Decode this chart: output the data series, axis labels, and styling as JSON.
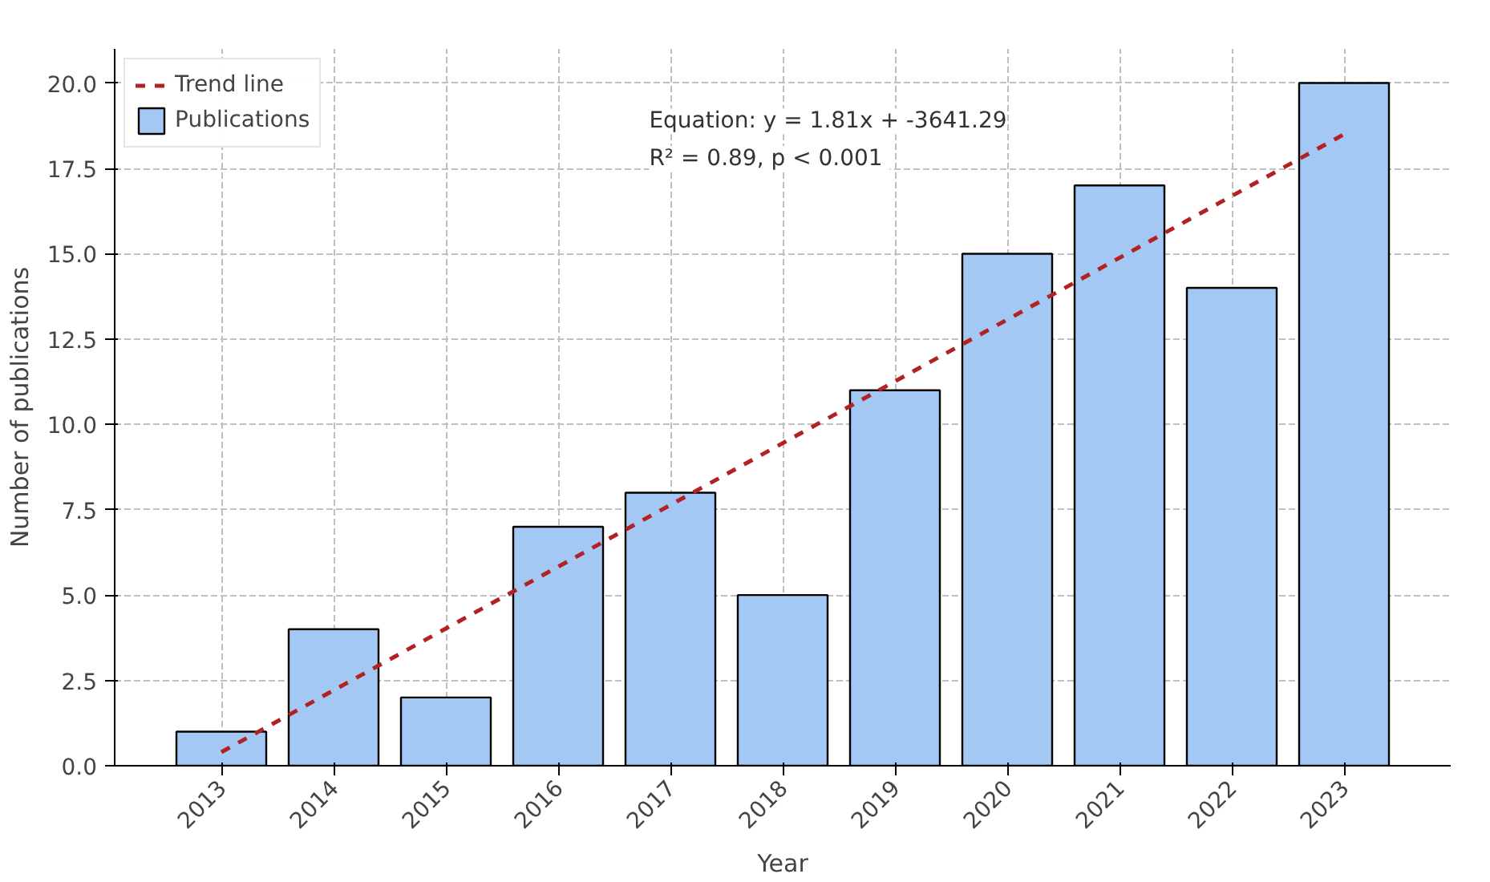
{
  "chart_data": {
    "type": "bar",
    "xlabel": "Year",
    "ylabel": "Number of publications",
    "x": [
      2013,
      2014,
      2015,
      2016,
      2017,
      2018,
      2019,
      2020,
      2021,
      2022,
      2023
    ],
    "series": [
      {
        "name": "Publications",
        "color": "#a4c8f4",
        "values": [
          1,
          4,
          2,
          7,
          8,
          5,
          11,
          15,
          17,
          14,
          20
        ]
      },
      {
        "name": "Trend line",
        "type": "line",
        "color": "#b22222",
        "line_style": "dashed",
        "x": [
          2013,
          2023
        ],
        "values": [
          0.4,
          18.5
        ]
      }
    ],
    "annotations": [
      "Equation: y = 1.81x + -3641.29",
      "R² = 0.89,  p < 0.001"
    ],
    "xlim": [
      2012.05,
      2023.95
    ],
    "xticks": [
      2013,
      2014,
      2015,
      2016,
      2017,
      2018,
      2019,
      2020,
      2021,
      2022,
      2023
    ],
    "ylim": [
      0,
      21
    ],
    "yticks": [
      {
        "value": 0,
        "label": "0.0"
      },
      {
        "value": 2.5,
        "label": "2.5"
      },
      {
        "value": 5,
        "label": "5.0"
      },
      {
        "value": 7.5,
        "label": "7.5"
      },
      {
        "value": 10,
        "label": "10.0"
      },
      {
        "value": 12.5,
        "label": "12.5"
      },
      {
        "value": 15,
        "label": "15.0"
      },
      {
        "value": 17.5,
        "label": "17.5"
      },
      {
        "value": 20,
        "label": "20.0"
      }
    ],
    "grid": true,
    "legend": "top left"
  }
}
